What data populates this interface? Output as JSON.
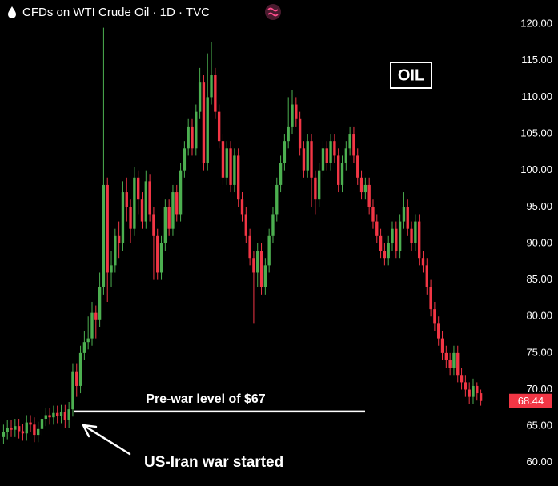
{
  "chart_data": {
    "type": "candlestick",
    "title": "CFDs on WTI Crude Oil · 1D · TVC",
    "badge": "OIL",
    "up_color": "#4caf50",
    "down_color": "#f23645",
    "ylim": [
      56.8,
      123.3
    ],
    "yticks": [
      {
        "value": 120,
        "label": "120.00"
      },
      {
        "value": 115,
        "label": "115.00"
      },
      {
        "value": 110,
        "label": "110.00"
      },
      {
        "value": 105,
        "label": "105.00"
      },
      {
        "value": 100,
        "label": "100.00"
      },
      {
        "value": 95,
        "label": "95.00"
      },
      {
        "value": 90,
        "label": "90.00"
      },
      {
        "value": 85,
        "label": "85.00"
      },
      {
        "value": 80,
        "label": "80.00"
      },
      {
        "value": 75,
        "label": "75.00"
      },
      {
        "value": 70,
        "label": "70.00"
      },
      {
        "value": 65,
        "label": "65.00"
      },
      {
        "value": 60,
        "label": "60.00"
      }
    ],
    "last_price": 68.44,
    "reference_line": {
      "value": 67,
      "label": "Pre-war level of $67"
    },
    "annotation": "US-Iran war started",
    "open": [
      63.5,
      64.2,
      64.8,
      64.5,
      65.0,
      64.3,
      64.0,
      65.5,
      65.2,
      63.8,
      64.6,
      66.0,
      66.5,
      66.2,
      66.8,
      66.4,
      66.9,
      65.8,
      67.3,
      72.5,
      70.5,
      75.0,
      76.5,
      77.0,
      80.5,
      79.5,
      84.0,
      98.0,
      86.0,
      87.0,
      91.0,
      90.0,
      97.0,
      95.0,
      92.0,
      99.0,
      96.0,
      93.0,
      98.5,
      94.0,
      91.0,
      86.0,
      90.0,
      95.0,
      92.0,
      97.0,
      94.0,
      100.0,
      103.0,
      106.0,
      103.0,
      108.0,
      112.0,
      101.0,
      110.0,
      113.0,
      108.0,
      104.0,
      99.0,
      103.0,
      98.0,
      102.0,
      96.0,
      94.0,
      91.0,
      88.0,
      86.0,
      89.0,
      84.0,
      87.0,
      91.0,
      94.0,
      98.0,
      101.0,
      104.0,
      106.0,
      109.0,
      107.0,
      103.0,
      100.0,
      104.0,
      99.0,
      96.0,
      100.0,
      103.0,
      101.0,
      104.0,
      102.0,
      98.0,
      101.0,
      103.0,
      105.0,
      102.0,
      99.0,
      97.0,
      98.0,
      95.0,
      93.0,
      91.0,
      89.0,
      88.0,
      90.0,
      92.0,
      89.0,
      93.0,
      95.0,
      92.0,
      90.0,
      93.0,
      88.0,
      87.0,
      84.0,
      81.0,
      79.0,
      77.0,
      75.0,
      74.0,
      73.0,
      75.0,
      72.0,
      71.0,
      70.0,
      69.0,
      70.5,
      69.5
    ],
    "high": [
      65.2,
      65.8,
      65.8,
      66.0,
      66.0,
      65.3,
      66.5,
      66.5,
      66.2,
      65.6,
      67.0,
      67.5,
      67.5,
      67.8,
      67.8,
      67.9,
      67.9,
      68.3,
      73.5,
      73.5,
      76.0,
      78.0,
      80.0,
      82.0,
      81.5,
      86.0,
      119.5,
      99.0,
      89.0,
      92.0,
      93.0,
      98.5,
      99.0,
      96.0,
      100.5,
      100.0,
      97.0,
      100.0,
      99.5,
      95.0,
      92.0,
      91.0,
      96.0,
      96.0,
      98.0,
      98.0,
      101.0,
      104.0,
      107.0,
      107.0,
      109.0,
      114.0,
      113.0,
      116.0,
      117.5,
      114.0,
      109.0,
      105.0,
      104.0,
      104.0,
      103.0,
      103.0,
      97.0,
      95.0,
      92.0,
      89.0,
      90.0,
      90.0,
      88.0,
      92.0,
      95.0,
      99.0,
      102.0,
      105.0,
      110.0,
      111.0,
      110.0,
      108.0,
      104.0,
      105.0,
      105.0,
      100.0,
      101.0,
      104.0,
      104.0,
      105.0,
      105.0,
      103.0,
      102.0,
      104.0,
      106.0,
      106.0,
      103.0,
      100.0,
      99.0,
      99.0,
      96.0,
      94.0,
      92.0,
      90.0,
      91.0,
      93.0,
      93.0,
      94.0,
      97.0,
      96.0,
      93.0,
      94.0,
      94.0,
      89.0,
      88.0,
      85.0,
      82.0,
      80.0,
      78.0,
      76.0,
      75.0,
      76.0,
      76.0,
      73.0,
      72.0,
      71.0,
      71.5,
      71.0,
      70.0
    ],
    "low": [
      62.5,
      63.2,
      63.5,
      63.5,
      63.3,
      63.0,
      63.0,
      64.2,
      62.8,
      62.8,
      63.6,
      65.0,
      65.2,
      65.2,
      65.4,
      65.4,
      64.8,
      64.8,
      66.3,
      69.0,
      69.5,
      74.0,
      75.5,
      76.0,
      77.0,
      78.5,
      83.0,
      82.0,
      84.0,
      86.0,
      88.0,
      89.0,
      93.0,
      90.0,
      91.0,
      94.0,
      92.0,
      92.0,
      93.0,
      85.0,
      85.0,
      85.0,
      89.0,
      91.0,
      91.0,
      93.0,
      93.0,
      99.0,
      102.0,
      102.0,
      102.0,
      107.0,
      100.0,
      100.0,
      109.0,
      107.0,
      103.0,
      98.0,
      98.0,
      97.0,
      97.0,
      95.0,
      93.0,
      90.0,
      87.0,
      79.0,
      84.0,
      83.0,
      83.0,
      86.0,
      90.0,
      93.0,
      97.0,
      100.0,
      103.0,
      105.0,
      106.0,
      102.0,
      99.0,
      99.0,
      95.0,
      94.0,
      95.0,
      99.0,
      100.0,
      100.0,
      101.0,
      97.0,
      97.0,
      100.0,
      102.0,
      101.0,
      98.0,
      96.0,
      96.0,
      94.0,
      92.0,
      90.0,
      88.0,
      87.0,
      87.0,
      89.0,
      88.0,
      88.0,
      92.0,
      91.0,
      89.0,
      89.0,
      87.0,
      86.0,
      83.0,
      80.0,
      78.0,
      76.0,
      74.0,
      73.0,
      72.0,
      72.0,
      71.0,
      70.0,
      69.0,
      68.0,
      68.0,
      68.5,
      67.8
    ],
    "close": [
      64.2,
      64.8,
      64.5,
      65.0,
      64.3,
      64.0,
      65.5,
      65.2,
      63.8,
      64.6,
      66.0,
      66.5,
      66.2,
      66.8,
      66.4,
      66.9,
      65.8,
      67.3,
      72.5,
      70.5,
      75.0,
      76.5,
      77.0,
      80.5,
      79.5,
      84.0,
      98.0,
      86.0,
      87.0,
      91.0,
      90.0,
      97.0,
      95.0,
      92.0,
      99.0,
      96.0,
      93.0,
      98.5,
      94.0,
      91.0,
      86.0,
      90.0,
      95.0,
      92.0,
      97.0,
      94.0,
      100.0,
      103.0,
      106.0,
      103.0,
      108.0,
      112.0,
      101.0,
      110.0,
      113.0,
      108.0,
      104.0,
      99.0,
      103.0,
      98.0,
      102.0,
      96.0,
      94.0,
      91.0,
      88.0,
      86.0,
      89.0,
      84.0,
      87.0,
      91.0,
      94.0,
      98.0,
      101.0,
      104.0,
      106.0,
      109.0,
      107.0,
      103.0,
      100.0,
      104.0,
      99.0,
      96.0,
      100.0,
      103.0,
      101.0,
      104.0,
      102.0,
      98.0,
      101.0,
      103.0,
      105.0,
      102.0,
      99.0,
      97.0,
      98.0,
      95.0,
      93.0,
      91.0,
      89.0,
      88.0,
      90.0,
      92.0,
      89.0,
      93.0,
      95.0,
      92.0,
      90.0,
      93.0,
      88.0,
      87.0,
      84.0,
      81.0,
      79.0,
      77.0,
      75.0,
      74.0,
      73.0,
      75.0,
      72.0,
      71.0,
      70.0,
      69.0,
      70.5,
      69.5,
      68.44
    ]
  }
}
